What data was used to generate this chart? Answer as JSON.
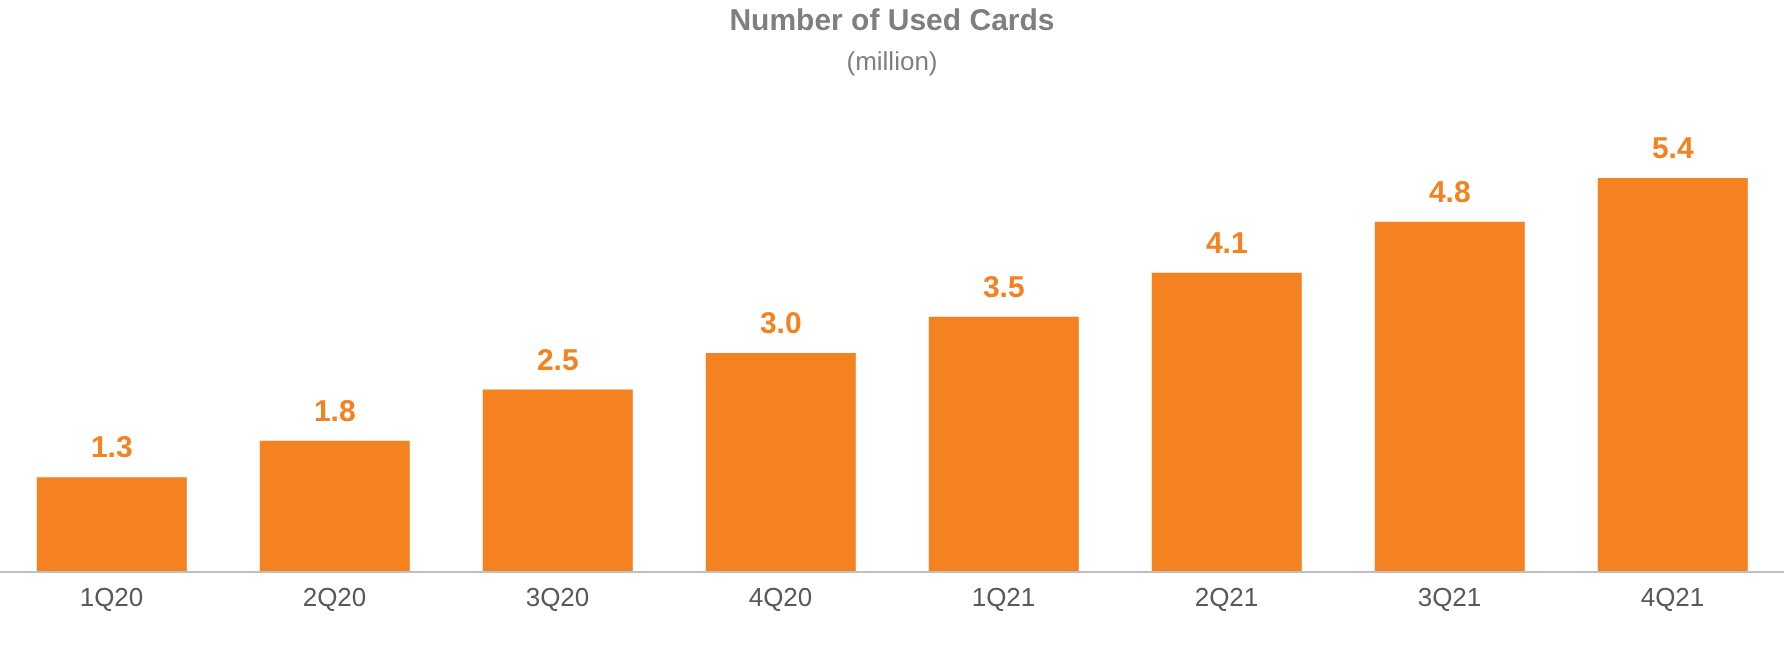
{
  "chart_data": {
    "type": "bar",
    "title": "Number of Used Cards",
    "subtitle": "(million)",
    "categories": [
      "1Q20",
      "2Q20",
      "3Q20",
      "4Q20",
      "1Q21",
      "2Q21",
      "3Q21",
      "4Q21"
    ],
    "values": [
      1.3,
      1.8,
      2.5,
      3.0,
      3.5,
      4.1,
      4.8,
      5.4
    ],
    "value_labels": [
      "1.3",
      "1.8",
      "2.5",
      "3.0",
      "3.5",
      "4.1",
      "4.8",
      "5.4"
    ],
    "color": "#f58220",
    "grid": false
  }
}
